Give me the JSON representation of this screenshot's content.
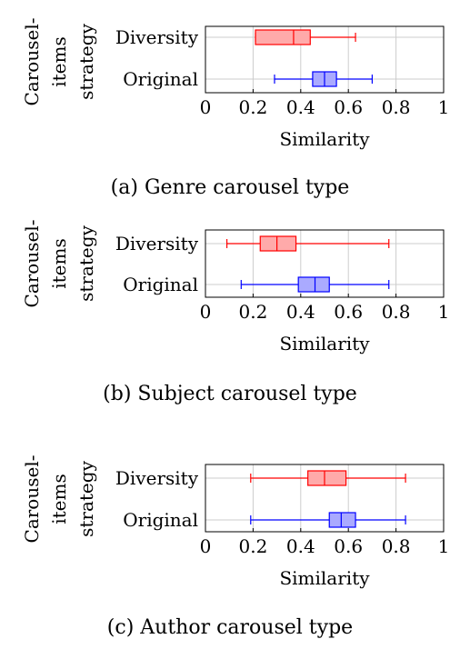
{
  "chart_data": [
    {
      "type": "boxplot",
      "caption": "(a) Genre carousel type",
      "xlabel": "Similarity",
      "ylabel_lines": [
        "Carousel-",
        "items",
        "strategy"
      ],
      "xlim": [
        0,
        1
      ],
      "xticks": [
        0,
        0.2,
        0.4,
        0.6,
        0.8,
        1
      ],
      "xtick_labels": [
        "0",
        "0.2",
        "0.4",
        "0.6",
        "0.8",
        "1"
      ],
      "grid": true,
      "categories": [
        "Diversity",
        "Original"
      ],
      "boxes": [
        {
          "category": "Diversity",
          "color": "#ff0000",
          "fill": "#ffaaaa",
          "whisker_low": 0.21,
          "q1": 0.21,
          "median": 0.37,
          "q3": 0.44,
          "whisker_high": 0.63
        },
        {
          "category": "Original",
          "color": "#0000ff",
          "fill": "#aaaaff",
          "whisker_low": 0.29,
          "q1": 0.45,
          "median": 0.5,
          "q3": 0.55,
          "whisker_high": 0.7
        }
      ]
    },
    {
      "type": "boxplot",
      "caption": "(b) Subject carousel type",
      "xlabel": "Similarity",
      "ylabel_lines": [
        "Carousel-",
        "items",
        "strategy"
      ],
      "xlim": [
        0,
        1
      ],
      "xticks": [
        0,
        0.2,
        0.4,
        0.6,
        0.8,
        1
      ],
      "xtick_labels": [
        "0",
        "0.2",
        "0.4",
        "0.6",
        "0.8",
        "1"
      ],
      "grid": true,
      "categories": [
        "Diversity",
        "Original"
      ],
      "boxes": [
        {
          "category": "Diversity",
          "color": "#ff0000",
          "fill": "#ffaaaa",
          "whisker_low": 0.09,
          "q1": 0.23,
          "median": 0.3,
          "q3": 0.38,
          "whisker_high": 0.77
        },
        {
          "category": "Original",
          "color": "#0000ff",
          "fill": "#aaaaff",
          "whisker_low": 0.15,
          "q1": 0.39,
          "median": 0.46,
          "q3": 0.52,
          "whisker_high": 0.77
        }
      ]
    },
    {
      "type": "boxplot",
      "caption": "(c) Author carousel type",
      "xlabel": "Similarity",
      "ylabel_lines": [
        "Carousel-",
        "items",
        "strategy"
      ],
      "xlim": [
        0,
        1
      ],
      "xticks": [
        0,
        0.2,
        0.4,
        0.6,
        0.8,
        1
      ],
      "xtick_labels": [
        "0",
        "0.2",
        "0.4",
        "0.6",
        "0.8",
        "1"
      ],
      "grid": true,
      "categories": [
        "Diversity",
        "Original"
      ],
      "boxes": [
        {
          "category": "Diversity",
          "color": "#ff0000",
          "fill": "#ffaaaa",
          "whisker_low": 0.19,
          "q1": 0.43,
          "median": 0.5,
          "q3": 0.59,
          "whisker_high": 0.84
        },
        {
          "category": "Original",
          "color": "#0000ff",
          "fill": "#aaaaff",
          "whisker_low": 0.19,
          "q1": 0.52,
          "median": 0.57,
          "q3": 0.63,
          "whisker_high": 0.84
        }
      ]
    }
  ]
}
